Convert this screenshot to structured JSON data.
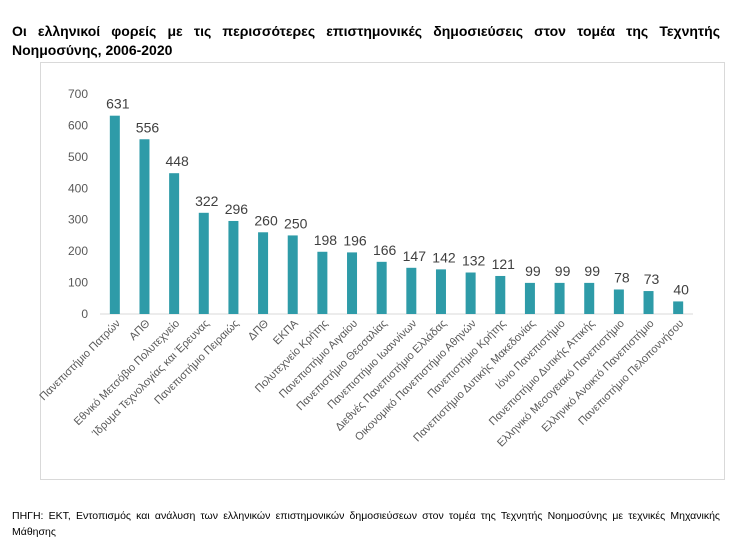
{
  "title": "Οι ελληνικοί φορείς με τις περισσότερες επιστημονικές δημοσιεύσεις στον τομέα της Τεχνητής Νοημοσύνης, 2006-2020",
  "source": "ΠΗΓΗ: ΕΚΤ, Εντοπισμός και ανάλυση των ελληνικών επιστημονικών δημοσιεύσεων στον τομέα της Τεχνητής Νοημοσύνης με τεχνικές Μηχανικής Μάθησης",
  "chart_data": {
    "type": "bar",
    "title": "Οι ελληνικοί φορείς με τις περισσότερες επιστημονικές δημοσιεύσεις στον τομέα της Τεχνητής Νοημοσύνης, 2006-2020",
    "categories": [
      "Πανεπιστήμιο Πατρών",
      "ΑΠΘ",
      "Εθνικό Μετσόβιο Πολυτεχνείο",
      "Ίδρυμα Τεχνολογίας και Έρευνας",
      "Πανεπιστήμιο Πειραιώς",
      "ΔΠΘ",
      "ΕΚΠΑ",
      "Πολυτεχνείο Κρήτης",
      "Πανεπιστήμιο Αιγαίου",
      "Πανεπιστήμιο Θεσσαλίας",
      "Πανεπιστήμιο Ιωαννίνων",
      "Διεθνές Πανεπιστήμιο Ελλάδας",
      "Οικονομικό Πανεπιστήμιο Αθηνών",
      "Πανεπιστήμιο Κρήτης",
      "Πανεπιστήμιο Δυτικής Μακεδονίας",
      "Ιόνιο Πανεπιστήμιο",
      "Πανεπιστήμιο Δυτικής Αττικής",
      "Ελληνικό Μεσογειακό Πανεπιστήμιο",
      "Ελληνικό Ανοικτό Πανεπιστήμιο",
      "Πανεπιστήμιο Πελοποννήσου"
    ],
    "values": [
      631,
      556,
      448,
      322,
      296,
      260,
      250,
      198,
      196,
      166,
      147,
      142,
      132,
      121,
      99,
      99,
      99,
      78,
      73,
      40
    ],
    "yticks": [
      0,
      100,
      200,
      300,
      400,
      500,
      600,
      700
    ],
    "ylim": [
      0,
      700
    ],
    "grid": false,
    "bar_color": "#2e9ba8",
    "data_labels": true
  }
}
